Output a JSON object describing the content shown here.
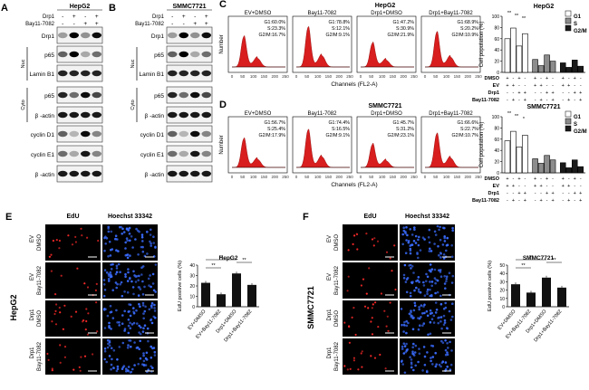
{
  "panels": {
    "A": {
      "letter": "A",
      "title": "HepG2",
      "cond": [
        "Drp1",
        "Bay11-7082"
      ],
      "signs": [
        [
          "-",
          "+",
          "-",
          "+"
        ],
        [
          "-",
          "-",
          "+",
          "+"
        ]
      ],
      "fraction_nuc": "Nuc",
      "fraction_cyto": "Cyto",
      "blots": [
        "Drp1",
        "p65",
        "Lamin B1",
        "p65",
        "β -actin",
        "cyclin D1",
        "cyclin E1",
        "β -actin"
      ]
    },
    "B": {
      "letter": "B",
      "title": "SMMC7721",
      "cond": [
        "Drp1",
        "Bay11-7082"
      ],
      "signs": [
        [
          "-",
          "+",
          "-",
          "+"
        ],
        [
          "-",
          "-",
          "+",
          "+"
        ]
      ],
      "fraction_nuc": "Nuc",
      "fraction_cyto": "Cyto",
      "blots": [
        "Drp1",
        "p65",
        "Lamin B1",
        "p65",
        "β -actin",
        "cyclin D1",
        "cyclin E1",
        "β -actin"
      ]
    },
    "C": {
      "letter": "C",
      "cell": "HepG2",
      "xlabel": "Channels (FL2-A)",
      "ylabel": "Number",
      "hist": [
        {
          "name": "EV+DMSO",
          "stats": [
            "G1:60.0%",
            "S:23.3%",
            "G2/M:16.7%"
          ]
        },
        {
          "name": "Bay11-7082",
          "stats": [
            "G1:78.8%",
            "S:12.1%",
            "G2/M:9.1%"
          ]
        },
        {
          "name": "Drp1+DMSO",
          "stats": [
            "G1:47.2%",
            "S:30.9%",
            "G2/M:21.9%"
          ]
        },
        {
          "name": "Drp1+Bay11-7082",
          "stats": [
            "G1:68.9%",
            "S:20.2%",
            "G2/M:10.9%"
          ]
        }
      ],
      "ticks_x": [
        "0",
        "50",
        "100",
        "150",
        "200",
        "250"
      ],
      "bar_title": "HepG2",
      "bar_ylabel": "Cell population (%)"
    },
    "D": {
      "letter": "D",
      "cell": "SMMC7721",
      "xlabel": "Channels (FL2-A)",
      "ylabel": "Number",
      "hist": [
        {
          "name": "EV+DMSO",
          "stats": [
            "G1:56.7%",
            "S:25.4%",
            "G2/M:17.9%"
          ]
        },
        {
          "name": "Bay11-7082",
          "stats": [
            "G1:74.4%",
            "S:16.5%",
            "G2/M:9.1%"
          ]
        },
        {
          "name": "Drp1+DMSO",
          "stats": [
            "G1:45.7%",
            "S:31.2%",
            "G2/M:23.1%"
          ]
        },
        {
          "name": "Drp1+Bay11-7082",
          "stats": [
            "G1:66.6%",
            "S:22.7%",
            "G2/M:10.7%"
          ]
        }
      ],
      "ticks_x": [
        "0",
        "50",
        "100",
        "150",
        "200",
        "250"
      ],
      "bar_title": "SMMC7721",
      "bar_ylabel": "Cell population (%)"
    },
    "E": {
      "letter": "E",
      "cell": "HepG2",
      "col1": "EdU",
      "col2": "Hoechst 33342",
      "rows": [
        [
          "EV",
          "DMSO"
        ],
        [
          "EV",
          "Bay11-7082"
        ],
        [
          "Drp1",
          "DMSO"
        ],
        [
          "Drp1",
          "Bay11-7082"
        ]
      ],
      "bar_title": "HepG2",
      "bar_ylabel": "EdU positive cells (%)"
    },
    "F": {
      "letter": "F",
      "cell": "SMMC7721",
      "col1": "EdU",
      "col2": "Hoechst 33342",
      "rows": [
        [
          "EV",
          "DMSO"
        ],
        [
          "EV",
          "Bay11-7082"
        ],
        [
          "Drp1",
          "DMSO"
        ],
        [
          "Drp1",
          "Bay11-7082"
        ]
      ],
      "bar_title": "SMMC7721",
      "bar_ylabel": "EdU positive cells (%)"
    }
  },
  "cc_legend": [
    "G1",
    "S",
    "G2/M"
  ],
  "cc_rowlabels": [
    "DMSO",
    "EV",
    "Drp1",
    "Bay11-7082"
  ],
  "cc_signs": [
    [
      "+",
      "-",
      "+",
      "-"
    ],
    [
      "+",
      "+",
      "-",
      "-"
    ],
    [
      "-",
      "-",
      "+",
      "+"
    ],
    [
      "-",
      "+",
      "-",
      "+"
    ]
  ],
  "colors": {
    "g1": "#ffffff",
    "s": "#8c8c8c",
    "g2m": "#1a1a1a",
    "hist_red": "#d81e1e",
    "edu_red": "#ff2a2a",
    "hoechst_blue": "#3a6cff"
  },
  "chart_data": [
    {
      "type": "bar",
      "title": "HepG2",
      "ylabel": "Cell population (%)",
      "ylim": [
        0,
        100
      ],
      "categories": [
        "EV+DMSO",
        "EV+Bay11-7082",
        "Drp1+DMSO",
        "Drp1+Bay11-7082"
      ],
      "series": [
        {
          "name": "G1",
          "values": [
            60,
            79,
            47,
            69
          ]
        },
        {
          "name": "S",
          "values": [
            23,
            12,
            31,
            20
          ]
        },
        {
          "name": "G2/M",
          "values": [
            17,
            9,
            22,
            11
          ]
        }
      ],
      "annotations": [
        "**",
        "**",
        "**",
        "**",
        "**",
        "*",
        "**"
      ]
    },
    {
      "type": "bar",
      "title": "SMMC7721",
      "ylabel": "Cell population (%)",
      "ylim": [
        0,
        100
      ],
      "categories": [
        "EV+DMSO",
        "EV+Bay11-7082",
        "Drp1+DMSO",
        "Drp1+Bay11-7082"
      ],
      "series": [
        {
          "name": "G1",
          "values": [
            57,
            74,
            46,
            67
          ]
        },
        {
          "name": "S",
          "values": [
            25,
            17,
            31,
            23
          ]
        },
        {
          "name": "G2/M",
          "values": [
            18,
            9,
            23,
            11
          ]
        }
      ],
      "annotations": [
        "**",
        "**",
        "*",
        "**",
        "**",
        "ns",
        "**",
        "ns",
        "**"
      ]
    },
    {
      "type": "bar",
      "title": "HepG2",
      "ylabel": "EdU positive cells (%)",
      "ylim": [
        0,
        40
      ],
      "categories": [
        "EV+DMSO",
        "EV+Bay11-7082",
        "Drp1+DMSO",
        "Drp1+Bay11-7082"
      ],
      "values": [
        23,
        12,
        32,
        21
      ],
      "yticks": [
        "0",
        "10",
        "20",
        "30",
        "40"
      ],
      "annotations": [
        "**",
        "**",
        "**"
      ]
    },
    {
      "type": "bar",
      "title": "SMMC7721",
      "ylabel": "EdU positive cells (%)",
      "ylim": [
        0,
        50
      ],
      "categories": [
        "EV+DMSO",
        "EV+Bay11-7082",
        "Drp1+DMSO",
        "Drp1+Bay11-7082"
      ],
      "values": [
        27,
        17,
        35,
        23
      ],
      "yticks": [
        "0",
        "10",
        "20",
        "30",
        "40",
        "50"
      ],
      "annotations": [
        "**",
        "**",
        "**"
      ]
    }
  ]
}
